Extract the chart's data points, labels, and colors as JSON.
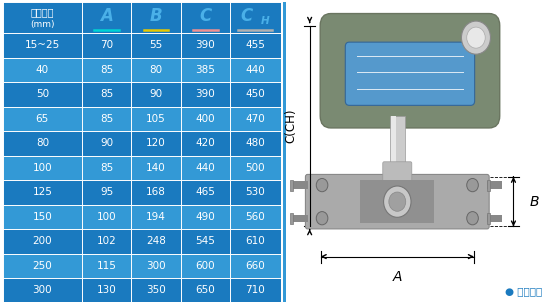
{
  "header": [
    "仪表口径\n(mm)",
    "A",
    "B",
    "C",
    "CH"
  ],
  "header_colors_underline": [
    "none",
    "#00d4d4",
    "#e8c800",
    "#f09090",
    "#b0b0b0"
  ],
  "rows": [
    [
      "15~25",
      "70",
      "55",
      "390",
      "455"
    ],
    [
      "40",
      "85",
      "80",
      "385",
      "440"
    ],
    [
      "50",
      "85",
      "90",
      "390",
      "450"
    ],
    [
      "65",
      "85",
      "105",
      "400",
      "470"
    ],
    [
      "80",
      "90",
      "120",
      "420",
      "480"
    ],
    [
      "100",
      "85",
      "140",
      "440",
      "500"
    ],
    [
      "125",
      "95",
      "168",
      "465",
      "530"
    ],
    [
      "150",
      "100",
      "194",
      "490",
      "560"
    ],
    [
      "200",
      "102",
      "248",
      "545",
      "610"
    ],
    [
      "250",
      "115",
      "300",
      "600",
      "660"
    ],
    [
      "300",
      "130",
      "350",
      "650",
      "710"
    ]
  ],
  "row_bg_dark": "#1a7abf",
  "row_bg_light": "#3399d6",
  "header_bg": "#1a7abf",
  "header_text_color": "#4ab0e8",
  "row_text_color": "#ffffff",
  "col0_header_color": "#ffffff",
  "border_color": "#ffffff",
  "fig_bg": "#ffffff",
  "right_bg": "#dceeff",
  "caption": "● 常规仪表",
  "caption_color": "#1a7abf",
  "dim_label_A": "A",
  "dim_label_B": "B",
  "dim_label_CCH": "C(CH)"
}
